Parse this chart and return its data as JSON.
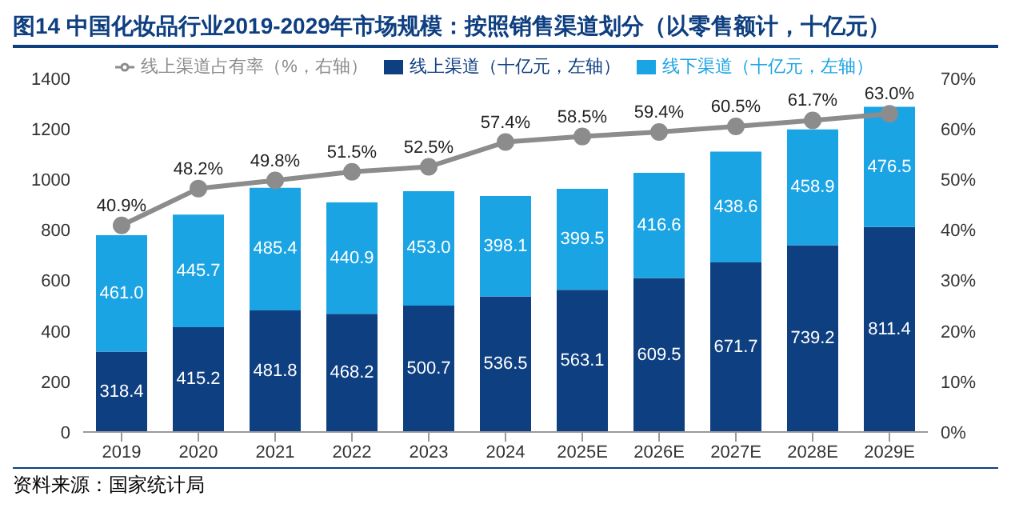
{
  "chart_data": {
    "type": "bar",
    "title": "图14 中国化妆品行业2019-2029年市场规模：按照销售渠道划分（以零售额计，十亿元）",
    "annotations": [
      "资料来源：国家统计局"
    ],
    "categories": [
      "2019",
      "2020",
      "2021",
      "2022",
      "2023",
      "2024",
      "2025E",
      "2026E",
      "2027E",
      "2028E",
      "2029E"
    ],
    "stacked": true,
    "legend": "top",
    "marker": "circle",
    "series": [
      {
        "name": "线上渠道（十亿元，左轴）",
        "color": "#0e3f80",
        "values": [
          318.4,
          415.2,
          481.8,
          468.2,
          500.7,
          536.5,
          563.1,
          609.5,
          671.7,
          739.2,
          811.4
        ],
        "value_labels": [
          "318.4",
          "415.2",
          "481.8",
          "468.2",
          "500.7",
          "536.5",
          "563.1",
          "609.5",
          "671.7",
          "739.2",
          "811.4"
        ]
      },
      {
        "name": "线下渠道（十亿元，左轴）",
        "color": "#1ba4e4",
        "values": [
          461.0,
          445.7,
          485.4,
          440.9,
          453.0,
          398.1,
          399.5,
          416.6,
          438.6,
          458.9,
          476.5
        ],
        "value_labels": [
          "461.0",
          "445.7",
          "485.4",
          "440.9",
          "453.0",
          "398.1",
          "399.5",
          "416.6",
          "438.6",
          "458.9",
          "476.5"
        ]
      },
      {
        "name": "线上渠道占有率（%，右轴）",
        "type": "line",
        "axis": "y2",
        "color": "#8c8c8c",
        "values": [
          40.9,
          48.2,
          49.8,
          51.5,
          52.5,
          57.4,
          58.5,
          59.4,
          60.5,
          61.7,
          63.0
        ],
        "value_labels": [
          "40.9%",
          "48.2%",
          "49.8%",
          "51.5%",
          "52.5%",
          "57.4%",
          "58.5%",
          "59.4%",
          "60.5%",
          "61.7%",
          "63.0%"
        ]
      }
    ],
    "ylim": [
      0,
      1400
    ],
    "yticks": [
      0,
      200,
      400,
      600,
      800,
      1000,
      1200,
      1400
    ],
    "y2lim": [
      0,
      70
    ],
    "y2ticks": [
      {
        "value": 0,
        "label": "0%"
      },
      {
        "value": 10,
        "label": "10%"
      },
      {
        "value": 20,
        "label": "20%"
      },
      {
        "value": 30,
        "label": "30%"
      },
      {
        "value": 40,
        "label": "40%"
      },
      {
        "value": 50,
        "label": "50%"
      },
      {
        "value": 60,
        "label": "60%"
      },
      {
        "value": 70,
        "label": "70%"
      }
    ]
  }
}
